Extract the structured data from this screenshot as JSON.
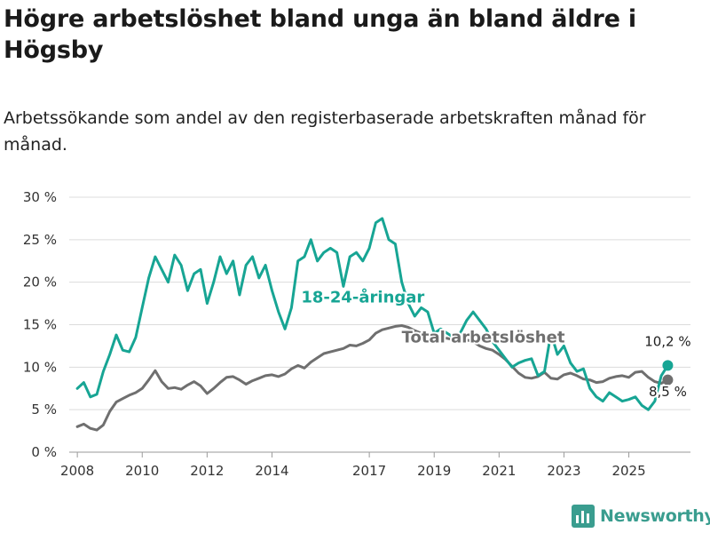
{
  "title": "Högre arbetslöshet bland unga än bland äldre i Högsby",
  "subtitle": "Arbetssökande som andel av den registerbaserade arbetskraften månad för månad.",
  "brand": {
    "name": "Newsworthy",
    "color": "#3a9d8f"
  },
  "chart_data": {
    "type": "line",
    "ylim": [
      0,
      30
    ],
    "xlim": [
      2007.75,
      2026.9
    ],
    "y_ticks": [
      0,
      5,
      10,
      15,
      20,
      25,
      30
    ],
    "y_tick_labels": [
      "0 %",
      "5 %",
      "10 %",
      "15 %",
      "20 %",
      "25 %",
      "30 %"
    ],
    "x_ticks": [
      2008,
      2010,
      2012,
      2014,
      2017,
      2019,
      2021,
      2023,
      2025
    ],
    "x_tick_labels": [
      "2008",
      "2010",
      "2012",
      "2014",
      "2017",
      "2019",
      "2021",
      "2023",
      "2025"
    ],
    "grid": true,
    "series": [
      {
        "name": "Total arbetslöshet",
        "label": "Total arbetslöshet",
        "color": "#6f6f6f",
        "end_label": "8,5 %",
        "x": [
          2008.0,
          2008.2,
          2008.4,
          2008.6,
          2008.8,
          2009.0,
          2009.2,
          2009.4,
          2009.6,
          2009.8,
          2010.0,
          2010.2,
          2010.4,
          2010.6,
          2010.8,
          2011.0,
          2011.2,
          2011.4,
          2011.6,
          2011.8,
          2012.0,
          2012.2,
          2012.4,
          2012.6,
          2012.8,
          2013.0,
          2013.2,
          2013.4,
          2013.6,
          2013.8,
          2014.0,
          2014.2,
          2014.4,
          2014.6,
          2014.8,
          2015.0,
          2015.2,
          2015.4,
          2015.6,
          2015.8,
          2016.0,
          2016.2,
          2016.4,
          2016.6,
          2016.8,
          2017.0,
          2017.2,
          2017.4,
          2017.6,
          2017.8,
          2018.0,
          2018.2,
          2018.4,
          2018.6,
          2018.8,
          2019.0,
          2019.2,
          2019.4,
          2019.6,
          2019.8,
          2020.0,
          2020.2,
          2020.4,
          2020.6,
          2020.8,
          2021.0,
          2021.2,
          2021.4,
          2021.6,
          2021.8,
          2022.0,
          2022.2,
          2022.4,
          2022.6,
          2022.8,
          2023.0,
          2023.2,
          2023.4,
          2023.6,
          2023.8,
          2024.0,
          2024.2,
          2024.4,
          2024.6,
          2024.8,
          2025.0,
          2025.2,
          2025.4,
          2025.6,
          2025.8,
          2026.0,
          2026.2
        ],
        "values": [
          3.0,
          3.3,
          2.8,
          2.6,
          3.2,
          4.8,
          5.9,
          6.3,
          6.7,
          7.0,
          7.5,
          8.5,
          9.6,
          8.3,
          7.5,
          7.6,
          7.4,
          7.9,
          8.3,
          7.8,
          6.9,
          7.5,
          8.2,
          8.8,
          8.9,
          8.5,
          8.0,
          8.4,
          8.7,
          9.0,
          9.1,
          8.9,
          9.2,
          9.8,
          10.2,
          9.9,
          10.6,
          11.1,
          11.6,
          11.8,
          12.0,
          12.2,
          12.6,
          12.5,
          12.8,
          13.2,
          14.0,
          14.4,
          14.6,
          14.8,
          14.9,
          14.7,
          14.3,
          14.0,
          13.8,
          13.6,
          13.4,
          13.4,
          13.2,
          13.0,
          13.2,
          13.0,
          12.5,
          12.2,
          12.0,
          11.5,
          10.9,
          10.1,
          9.3,
          8.8,
          8.7,
          8.9,
          9.4,
          8.7,
          8.6,
          9.1,
          9.3,
          9.0,
          8.6,
          8.5,
          8.2,
          8.3,
          8.7,
          8.9,
          9.0,
          8.8,
          9.4,
          9.5,
          8.8,
          8.3,
          8.1,
          8.5
        ]
      },
      {
        "name": "18-24-åringar",
        "label": "18-24-åringar",
        "color": "#17a594",
        "end_label": "10,2 %",
        "x": [
          2008.0,
          2008.2,
          2008.4,
          2008.6,
          2008.8,
          2009.0,
          2009.2,
          2009.4,
          2009.6,
          2009.8,
          2010.0,
          2010.2,
          2010.4,
          2010.6,
          2010.8,
          2011.0,
          2011.2,
          2011.4,
          2011.6,
          2011.8,
          2012.0,
          2012.2,
          2012.4,
          2012.6,
          2012.8,
          2013.0,
          2013.2,
          2013.4,
          2013.6,
          2013.8,
          2014.0,
          2014.2,
          2014.4,
          2014.6,
          2014.8,
          2015.0,
          2015.2,
          2015.4,
          2015.6,
          2015.8,
          2016.0,
          2016.2,
          2016.4,
          2016.6,
          2016.8,
          2017.0,
          2017.2,
          2017.4,
          2017.6,
          2017.8,
          2018.0,
          2018.2,
          2018.4,
          2018.6,
          2018.8,
          2019.0,
          2019.2,
          2019.4,
          2019.6,
          2019.8,
          2020.0,
          2020.2,
          2020.4,
          2020.6,
          2020.8,
          2021.0,
          2021.2,
          2021.4,
          2021.6,
          2021.8,
          2022.0,
          2022.2,
          2022.4,
          2022.6,
          2022.8,
          2023.0,
          2023.2,
          2023.4,
          2023.6,
          2023.8,
          2024.0,
          2024.2,
          2024.4,
          2024.6,
          2024.8,
          2025.0,
          2025.2,
          2025.4,
          2025.6,
          2025.8,
          2026.0,
          2026.2
        ],
        "values": [
          7.5,
          8.2,
          6.5,
          6.8,
          9.5,
          11.5,
          13.8,
          12.0,
          11.8,
          13.5,
          17.0,
          20.5,
          23.0,
          21.5,
          20.0,
          23.2,
          22.0,
          19.0,
          21.0,
          21.5,
          17.5,
          20.0,
          23.0,
          21.0,
          22.5,
          18.5,
          22.0,
          23.0,
          20.5,
          22.0,
          19.0,
          16.5,
          14.5,
          17.0,
          22.5,
          23.0,
          25.0,
          22.5,
          23.5,
          24.0,
          23.5,
          19.5,
          23.0,
          23.5,
          22.5,
          24.0,
          27.0,
          27.5,
          25.0,
          24.5,
          20.0,
          17.5,
          16.0,
          17.0,
          16.5,
          14.0,
          14.5,
          14.0,
          13.5,
          14.0,
          15.5,
          16.5,
          15.5,
          14.5,
          13.0,
          12.0,
          11.0,
          10.0,
          10.5,
          10.8,
          11.0,
          9.0,
          9.5,
          14.0,
          11.5,
          12.5,
          10.5,
          9.5,
          9.8,
          7.5,
          6.5,
          6.0,
          7.0,
          6.5,
          6.0,
          6.2,
          6.5,
          5.5,
          5.0,
          6.0,
          9.0,
          10.2
        ]
      }
    ],
    "annotations": [
      {
        "text": "18-24-åringar",
        "series": "18-24-åringar",
        "x": 2014.9,
        "y": 17.6
      },
      {
        "text": "Total arbetslöshet",
        "series": "Total arbetslöshet",
        "x": 2018.0,
        "y": 12.9
      },
      {
        "text": "10,2 %",
        "series": "18-24-åringar",
        "x": 2026.2,
        "y": 12.5
      },
      {
        "text": "8,5 %",
        "series": "Total arbetslöshet",
        "x": 2026.2,
        "y": 6.6
      }
    ]
  }
}
